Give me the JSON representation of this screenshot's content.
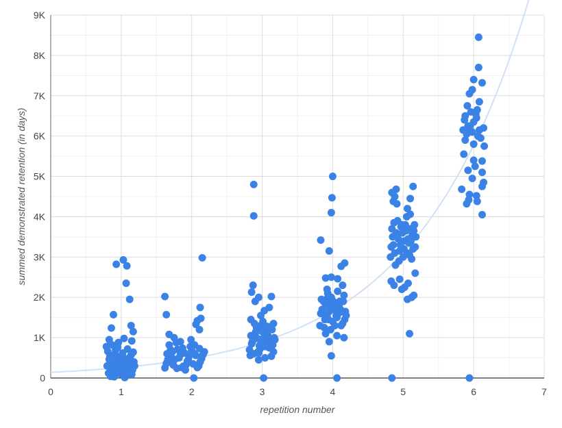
{
  "chart_data": {
    "type": "scatter",
    "xlabel": "repetition number",
    "ylabel": "summed demonstrated retention (in days)",
    "xlim": [
      0,
      7
    ],
    "ylim": [
      0,
      9000
    ],
    "x_ticks": [
      0,
      1,
      2,
      3,
      4,
      5,
      6,
      7
    ],
    "x_tick_labels": [
      "0",
      "1",
      "2",
      "3",
      "4",
      "5",
      "6",
      "7"
    ],
    "y_ticks": [
      0,
      1000,
      2000,
      3000,
      4000,
      5000,
      6000,
      7000,
      8000,
      9000
    ],
    "y_tick_labels": [
      "0",
      "1K",
      "2K",
      "3K",
      "4K",
      "5K",
      "6K",
      "7K",
      "8K",
      "9K"
    ],
    "grid": true,
    "point_color": "#3b82e6",
    "trendline_color": "#cfe0f7",
    "trendline": {
      "type": "exponential",
      "a": 140,
      "b": 0.62
    },
    "series": [
      {
        "points": [
          [
            0.93,
            2820
          ],
          [
            1.03,
            2930
          ],
          [
            1.08,
            2780
          ],
          [
            1.07,
            2350
          ],
          [
            1.12,
            1950
          ],
          [
            0.89,
            1570
          ],
          [
            1.14,
            1300
          ],
          [
            1.17,
            1150
          ],
          [
            0.86,
            1240
          ],
          [
            0.83,
            950
          ],
          [
            1.04,
            980
          ],
          [
            1.15,
            920
          ],
          [
            0.79,
            780
          ],
          [
            0.82,
            120
          ],
          [
            0.86,
            210
          ],
          [
            0.9,
            60
          ],
          [
            0.95,
            330
          ],
          [
            1.0,
            150
          ],
          [
            1.05,
            480
          ],
          [
            1.1,
            260
          ],
          [
            1.15,
            90
          ],
          [
            1.18,
            400
          ],
          [
            0.84,
            550
          ],
          [
            0.88,
            380
          ],
          [
            0.92,
            700
          ],
          [
            0.97,
            250
          ],
          [
            1.02,
            620
          ],
          [
            1.07,
            340
          ],
          [
            1.12,
            510
          ],
          [
            1.16,
            200
          ],
          [
            0.8,
            300
          ],
          [
            0.87,
            820
          ],
          [
            0.93,
            450
          ],
          [
            0.99,
            100
          ],
          [
            1.04,
            280
          ],
          [
            1.09,
            720
          ],
          [
            1.13,
            160
          ],
          [
            0.85,
            40
          ],
          [
            0.91,
            600
          ],
          [
            0.96,
            880
          ],
          [
            1.01,
            420
          ],
          [
            1.06,
            180
          ],
          [
            1.11,
            350
          ],
          [
            1.17,
            640
          ],
          [
            0.83,
            460
          ],
          [
            0.89,
            240
          ],
          [
            0.94,
            140
          ],
          [
            0.98,
            520
          ],
          [
            1.03,
            360
          ],
          [
            1.08,
            80
          ],
          [
            1.14,
            570
          ],
          [
            0.81,
            660
          ],
          [
            1.19,
            300
          ],
          [
            0.95,
            760
          ],
          [
            1.0,
            230
          ],
          [
            1.1,
            440
          ],
          [
            0.9,
            30
          ],
          [
            1.05,
            10
          ],
          [
            1.62,
            2020
          ],
          [
            2.15,
            2980
          ],
          [
            2.12,
            1750
          ],
          [
            1.64,
            1570
          ],
          [
            2.08,
            1420
          ],
          [
            2.13,
            1480
          ],
          [
            2.06,
            1330
          ],
          [
            2.11,
            1200
          ],
          [
            1.68,
            1080
          ],
          [
            1.75,
            1000
          ],
          [
            1.62,
            250
          ],
          [
            1.66,
            450
          ],
          [
            1.7,
            700
          ],
          [
            1.74,
            320
          ],
          [
            1.78,
            880
          ],
          [
            1.82,
            500
          ],
          [
            1.86,
            260
          ],
          [
            1.9,
            620
          ],
          [
            1.94,
            420
          ],
          [
            1.98,
            780
          ],
          [
            2.02,
            350
          ],
          [
            2.06,
            560
          ],
          [
            2.1,
            300
          ],
          [
            2.14,
            480
          ],
          [
            2.18,
            650
          ],
          [
            1.65,
            600
          ],
          [
            1.72,
            380
          ],
          [
            1.8,
            710
          ],
          [
            1.88,
            290
          ],
          [
            1.96,
            540
          ],
          [
            2.04,
            820
          ],
          [
            2.12,
            400
          ],
          [
            1.68,
            820
          ],
          [
            1.76,
            460
          ],
          [
            1.84,
            900
          ],
          [
            1.92,
            330
          ],
          [
            2.0,
            680
          ],
          [
            2.08,
            260
          ],
          [
            2.16,
            580
          ],
          [
            1.71,
            530
          ],
          [
            1.79,
            240
          ],
          [
            1.87,
            740
          ],
          [
            1.95,
            450
          ],
          [
            2.03,
            610
          ],
          [
            2.11,
            730
          ],
          [
            1.64,
            360
          ],
          [
            1.84,
            580
          ],
          [
            1.99,
            950
          ],
          [
            1.73,
            660
          ],
          [
            1.91,
            200
          ],
          [
            2.03,
            0
          ],
          [
            2.88,
            4800
          ],
          [
            2.88,
            4020
          ],
          [
            2.87,
            2300
          ],
          [
            2.85,
            2130
          ],
          [
            3.13,
            2020
          ],
          [
            2.95,
            2000
          ],
          [
            2.9,
            1900
          ],
          [
            3.1,
            1750
          ],
          [
            3.03,
            1670
          ],
          [
            2.98,
            1550
          ],
          [
            3.16,
            1350
          ],
          [
            2.84,
            1450
          ],
          [
            2.82,
            700
          ],
          [
            2.86,
            900
          ],
          [
            2.9,
            1100
          ],
          [
            2.94,
            650
          ],
          [
            2.98,
            1300
          ],
          [
            3.02,
            850
          ],
          [
            3.06,
            1000
          ],
          [
            3.1,
            750
          ],
          [
            3.14,
            1200
          ],
          [
            3.18,
            950
          ],
          [
            2.84,
            1050
          ],
          [
            2.88,
            600
          ],
          [
            2.92,
            1250
          ],
          [
            2.96,
            800
          ],
          [
            3.0,
            1150
          ],
          [
            3.04,
            500
          ],
          [
            3.08,
            1050
          ],
          [
            3.12,
            880
          ],
          [
            3.16,
            650
          ],
          [
            2.85,
            850
          ],
          [
            2.89,
            1350
          ],
          [
            2.93,
            980
          ],
          [
            2.97,
            720
          ],
          [
            3.01,
            1400
          ],
          [
            3.05,
            780
          ],
          [
            3.09,
            1220
          ],
          [
            3.13,
            540
          ],
          [
            3.17,
            1000
          ],
          [
            2.83,
            560
          ],
          [
            2.91,
            1150
          ],
          [
            2.99,
            960
          ],
          [
            3.07,
            1280
          ],
          [
            3.15,
            820
          ],
          [
            2.87,
            1000
          ],
          [
            2.95,
            620
          ],
          [
            3.03,
            1100
          ],
          [
            3.11,
            920
          ],
          [
            2.95,
            450
          ],
          [
            3.02,
            0
          ],
          [
            4.0,
            5000
          ],
          [
            3.99,
            4470
          ],
          [
            3.98,
            4100
          ],
          [
            3.83,
            3420
          ],
          [
            3.95,
            3150
          ],
          [
            4.17,
            2850
          ],
          [
            4.12,
            2770
          ],
          [
            3.98,
            2500
          ],
          [
            4.07,
            2460
          ],
          [
            3.9,
            2480
          ],
          [
            4.14,
            2300
          ],
          [
            3.92,
            2200
          ],
          [
            3.82,
            1300
          ],
          [
            3.86,
            1600
          ],
          [
            3.9,
            1800
          ],
          [
            3.94,
            1450
          ],
          [
            3.98,
            2000
          ],
          [
            4.02,
            1700
          ],
          [
            4.06,
            1500
          ],
          [
            4.1,
            1900
          ],
          [
            4.14,
            1350
          ],
          [
            4.18,
            1650
          ],
          [
            3.84,
            1950
          ],
          [
            3.88,
            1250
          ],
          [
            3.92,
            1550
          ],
          [
            3.96,
            1850
          ],
          [
            4.0,
            1400
          ],
          [
            4.04,
            1750
          ],
          [
            4.08,
            1600
          ],
          [
            4.12,
            1300
          ],
          [
            4.16,
            2050
          ],
          [
            3.85,
            1700
          ],
          [
            3.89,
            1450
          ],
          [
            3.93,
            2100
          ],
          [
            3.97,
            1200
          ],
          [
            4.01,
            1900
          ],
          [
            4.05,
            1550
          ],
          [
            4.09,
            1800
          ],
          [
            4.13,
            1650
          ],
          [
            4.17,
            1450
          ],
          [
            3.83,
            1600
          ],
          [
            3.91,
            1950
          ],
          [
            3.99,
            1750
          ],
          [
            4.07,
            2150
          ],
          [
            4.15,
            1900
          ],
          [
            3.87,
            1900
          ],
          [
            3.95,
            1650
          ],
          [
            4.03,
            1300
          ],
          [
            4.11,
            1700
          ],
          [
            4.19,
            1550
          ],
          [
            3.9,
            1100
          ],
          [
            4.06,
            1050
          ],
          [
            4.16,
            1000
          ],
          [
            3.95,
            900
          ],
          [
            3.98,
            550
          ],
          [
            4.06,
            0
          ],
          [
            4.84,
            4600
          ],
          [
            4.9,
            4680
          ],
          [
            5.14,
            4750
          ],
          [
            4.88,
            4500
          ],
          [
            5.1,
            4450
          ],
          [
            4.86,
            4380
          ],
          [
            4.91,
            4320
          ],
          [
            5.06,
            4200
          ],
          [
            5.1,
            4060
          ],
          [
            4.82,
            3000
          ],
          [
            4.86,
            3300
          ],
          [
            4.9,
            3600
          ],
          [
            4.94,
            2900
          ],
          [
            4.98,
            3800
          ],
          [
            5.02,
            3400
          ],
          [
            5.06,
            3100
          ],
          [
            5.1,
            3700
          ],
          [
            5.14,
            3200
          ],
          [
            5.18,
            3500
          ],
          [
            4.84,
            3700
          ],
          [
            4.88,
            3100
          ],
          [
            4.92,
            3900
          ],
          [
            4.96,
            3300
          ],
          [
            5.0,
            3000
          ],
          [
            5.04,
            3650
          ],
          [
            5.08,
            3350
          ],
          [
            5.12,
            2950
          ],
          [
            5.16,
            3800
          ],
          [
            4.85,
            3500
          ],
          [
            4.89,
            2800
          ],
          [
            4.93,
            3450
          ],
          [
            4.97,
            3750
          ],
          [
            5.01,
            3200
          ],
          [
            5.05,
            4000
          ],
          [
            5.09,
            3050
          ],
          [
            5.13,
            3550
          ],
          [
            5.17,
            3250
          ],
          [
            4.83,
            3250
          ],
          [
            4.91,
            3550
          ],
          [
            4.99,
            3600
          ],
          [
            5.07,
            3450
          ],
          [
            5.15,
            3650
          ],
          [
            4.87,
            3850
          ],
          [
            4.95,
            3150
          ],
          [
            5.03,
            3800
          ],
          [
            5.11,
            3400
          ],
          [
            4.83,
            2400
          ],
          [
            4.87,
            2300
          ],
          [
            4.95,
            2450
          ],
          [
            5.02,
            2250
          ],
          [
            5.07,
            2350
          ],
          [
            5.12,
            2000
          ],
          [
            5.17,
            2600
          ],
          [
            4.98,
            2200
          ],
          [
            5.06,
            1950
          ],
          [
            5.15,
            2050
          ],
          [
            5.09,
            1100
          ],
          [
            4.84,
            0
          ],
          [
            6.07,
            8450
          ],
          [
            6.07,
            7700
          ],
          [
            6.0,
            7400
          ],
          [
            6.12,
            7320
          ],
          [
            5.98,
            7150
          ],
          [
            5.94,
            7050
          ],
          [
            6.08,
            6850
          ],
          [
            5.91,
            6750
          ],
          [
            6.05,
            6650
          ],
          [
            5.87,
            6400
          ],
          [
            6.14,
            6200
          ],
          [
            5.85,
            6150
          ],
          [
            5.88,
            5900
          ],
          [
            6.1,
            5950
          ],
          [
            6.0,
            5800
          ],
          [
            6.15,
            5750
          ],
          [
            5.86,
            5550
          ],
          [
            6.0,
            5400
          ],
          [
            6.12,
            5380
          ],
          [
            6.02,
            5250
          ],
          [
            5.92,
            5150
          ],
          [
            6.12,
            5100
          ],
          [
            5.98,
            4950
          ],
          [
            6.14,
            4850
          ],
          [
            6.12,
            4750
          ],
          [
            5.83,
            4680
          ],
          [
            5.94,
            4550
          ],
          [
            6.04,
            4520
          ],
          [
            5.93,
            4420
          ],
          [
            5.9,
            4320
          ],
          [
            6.05,
            4380
          ],
          [
            6.12,
            4050
          ],
          [
            5.88,
            6500
          ],
          [
            5.92,
            6250
          ],
          [
            5.96,
            6600
          ],
          [
            6.0,
            6350
          ],
          [
            6.04,
            6450
          ],
          [
            6.08,
            6150
          ],
          [
            5.9,
            6050
          ],
          [
            5.98,
            6100
          ],
          [
            6.06,
            6000
          ],
          [
            5.95,
            6250
          ],
          [
            6.03,
            6550
          ],
          [
            5.93,
            6200
          ],
          [
            5.94,
            0
          ]
        ]
      }
    ]
  }
}
